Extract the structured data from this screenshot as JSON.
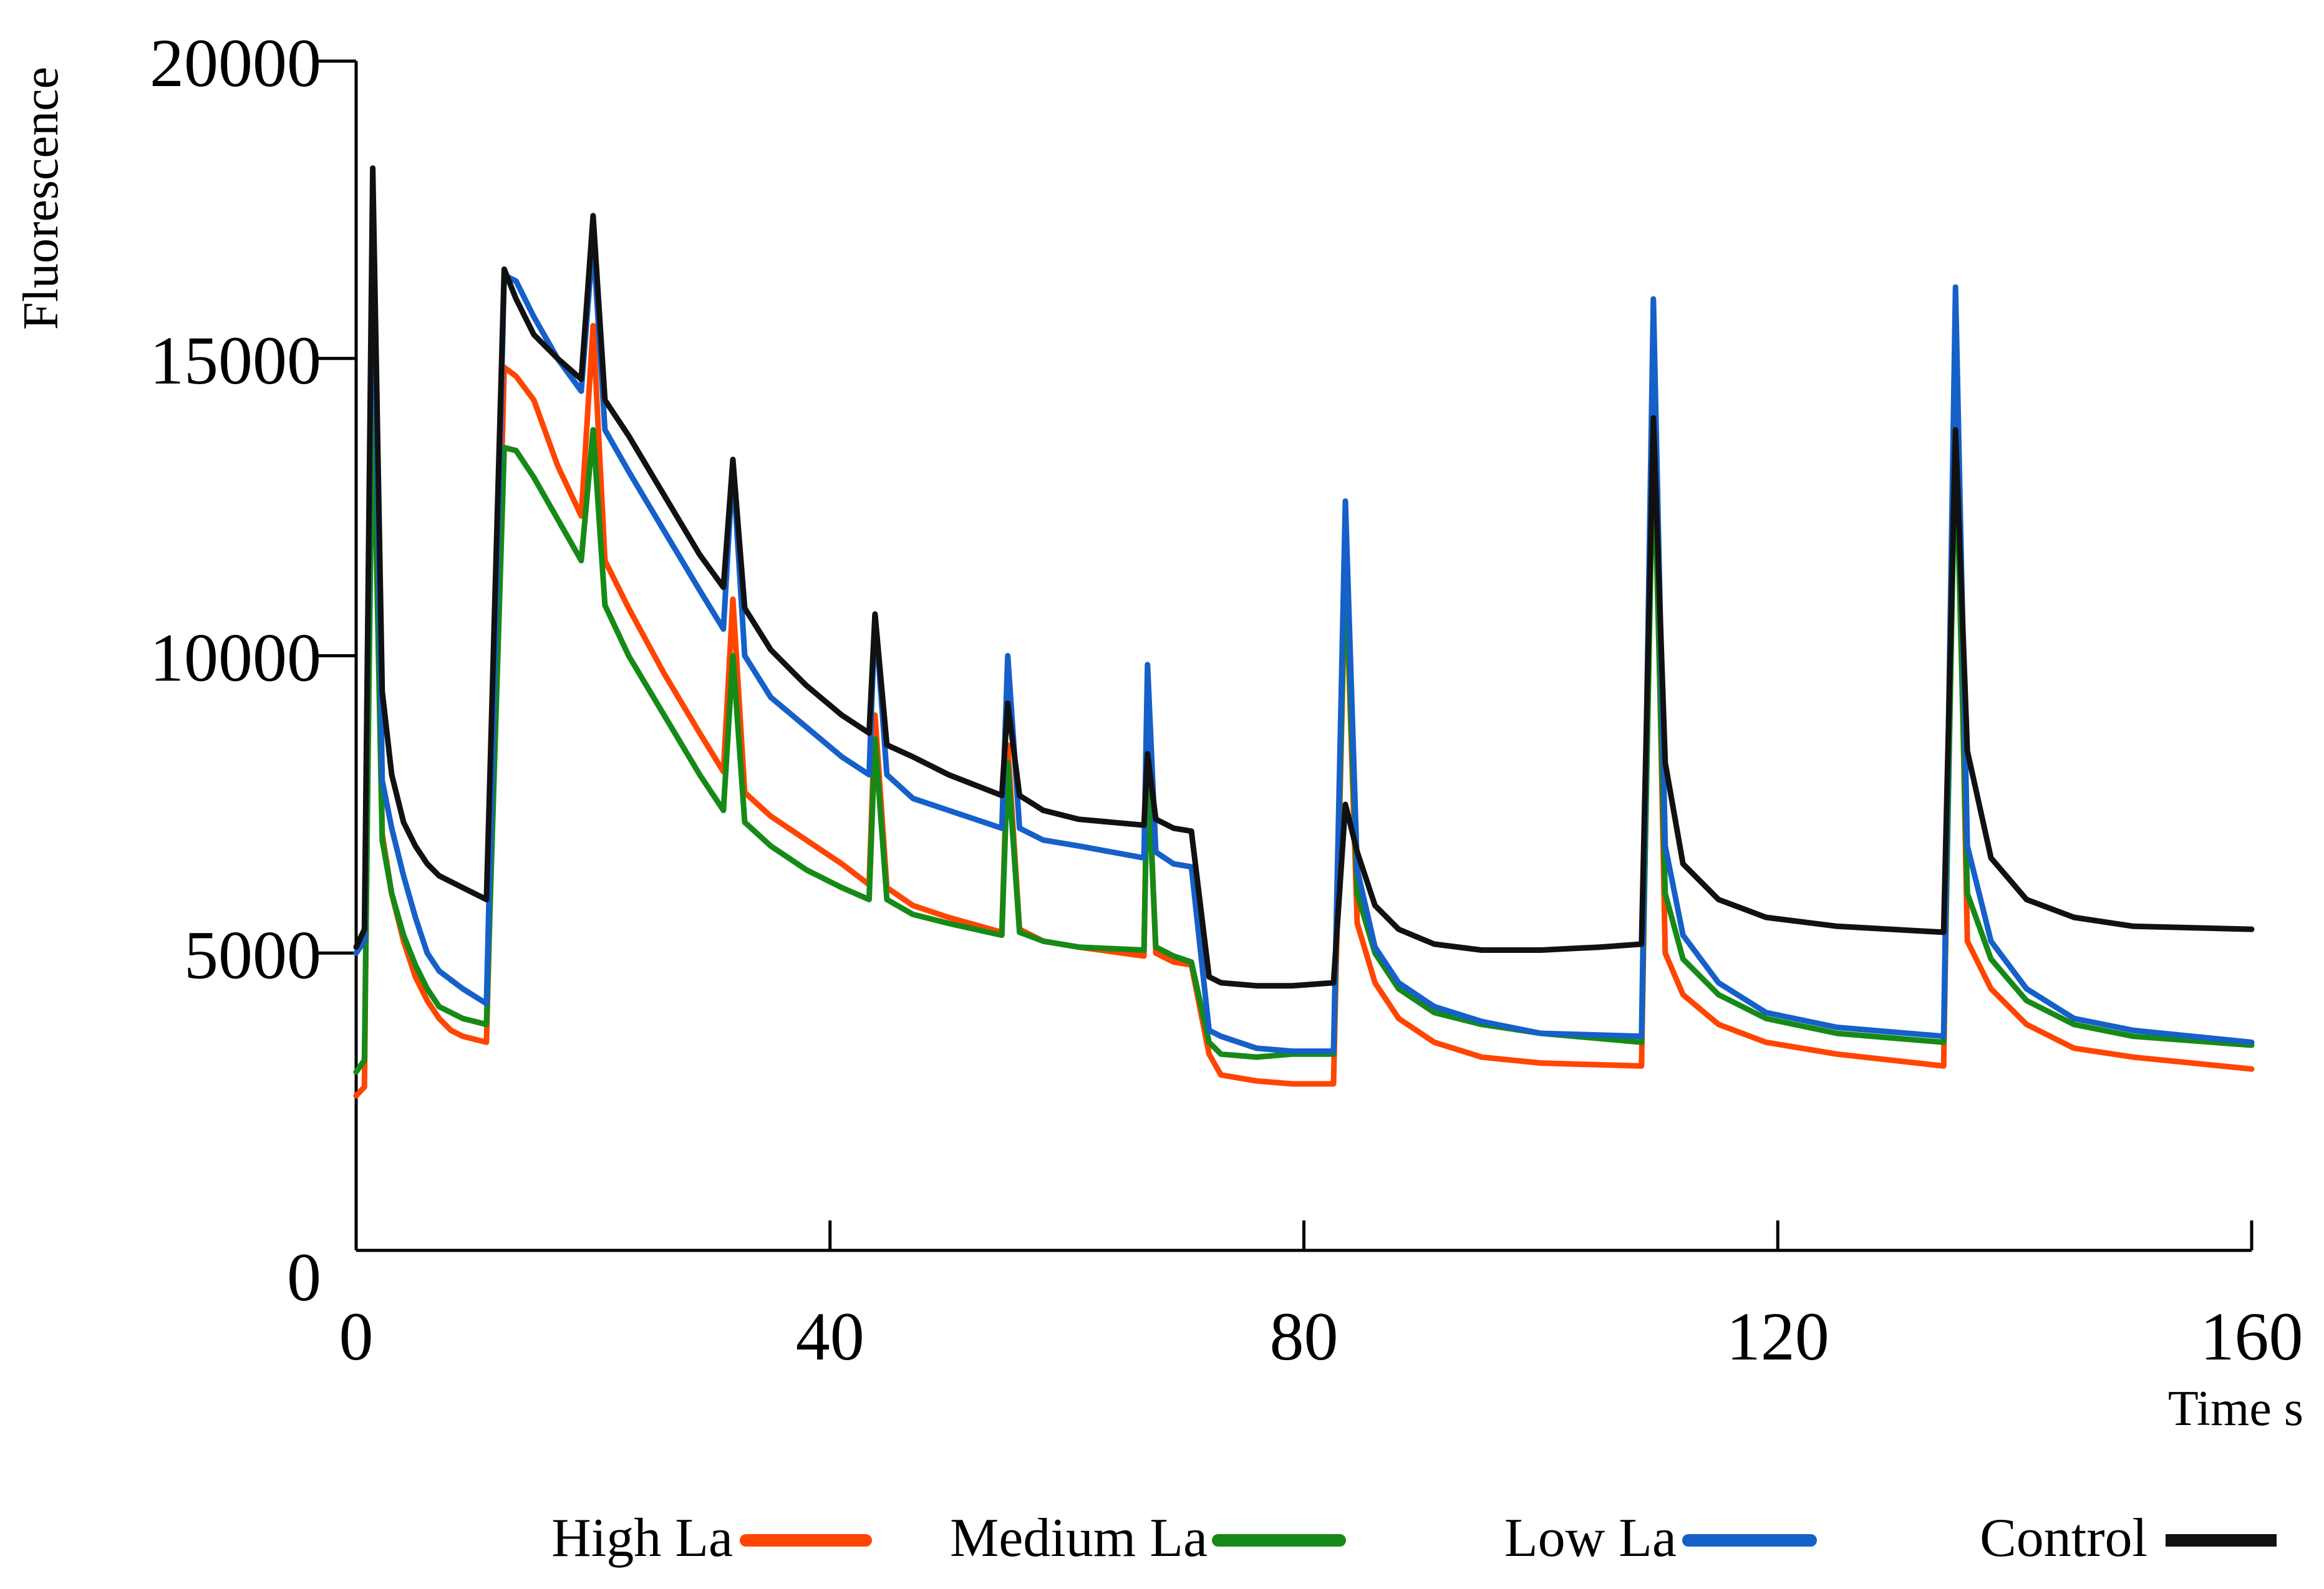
{
  "chart_data": {
    "type": "line",
    "title": "",
    "xlabel": "Time s",
    "ylabel": "Fluorescence",
    "xlim": [
      0,
      160
    ],
    "ylim": [
      0,
      20000
    ],
    "xticks": [
      0,
      40,
      80,
      120,
      160
    ],
    "yticks": [
      0,
      5000,
      10000,
      15000,
      20000
    ],
    "grid": false,
    "legend_position": "bottom",
    "series": [
      {
        "name": "High La",
        "color": "#ff4500",
        "points": [
          [
            0,
            2600
          ],
          [
            0.7,
            2750
          ],
          [
            1.4,
            16400
          ],
          [
            2.2,
            7000
          ],
          [
            3,
            6000
          ],
          [
            4,
            5200
          ],
          [
            5,
            4600
          ],
          [
            6,
            4200
          ],
          [
            7,
            3900
          ],
          [
            8,
            3700
          ],
          [
            9,
            3600
          ],
          [
            11,
            3500
          ],
          [
            12.5,
            14850
          ],
          [
            13.5,
            14700
          ],
          [
            15,
            14300
          ],
          [
            17,
            13200
          ],
          [
            19,
            12350
          ],
          [
            20,
            15550
          ],
          [
            21,
            11600
          ],
          [
            23,
            10800
          ],
          [
            26,
            9700
          ],
          [
            29,
            8700
          ],
          [
            31,
            8050
          ],
          [
            31.8,
            10950
          ],
          [
            32.8,
            7700
          ],
          [
            35,
            7300
          ],
          [
            38,
            6900
          ],
          [
            41,
            6500
          ],
          [
            43.3,
            6150
          ],
          [
            43.8,
            9000
          ],
          [
            44.8,
            6100
          ],
          [
            47,
            5800
          ],
          [
            50,
            5600
          ],
          [
            54.5,
            5350
          ],
          [
            55,
            8500
          ],
          [
            56,
            5400
          ],
          [
            58,
            5200
          ],
          [
            61,
            5100
          ],
          [
            66.5,
            4950
          ],
          [
            66.8,
            8500
          ],
          [
            67.5,
            5000
          ],
          [
            69,
            4850
          ],
          [
            70.5,
            4800
          ],
          [
            72,
            3300
          ],
          [
            73,
            2950
          ],
          [
            76,
            2850
          ],
          [
            79,
            2800
          ],
          [
            82.5,
            2800
          ],
          [
            83.5,
            11600
          ],
          [
            84.5,
            5500
          ],
          [
            86,
            4500
          ],
          [
            88,
            3900
          ],
          [
            91,
            3500
          ],
          [
            95,
            3250
          ],
          [
            100,
            3150
          ],
          [
            108.5,
            3100
          ],
          [
            109.5,
            15000
          ],
          [
            110.5,
            5000
          ],
          [
            112,
            4300
          ],
          [
            115,
            3800
          ],
          [
            119,
            3500
          ],
          [
            125,
            3300
          ],
          [
            134,
            3100
          ],
          [
            135,
            15300
          ],
          [
            136,
            5200
          ],
          [
            138,
            4400
          ],
          [
            141,
            3800
          ],
          [
            145,
            3400
          ],
          [
            150,
            3250
          ],
          [
            160,
            3050
          ]
        ]
      },
      {
        "name": "Medium La",
        "color": "#168a16",
        "points": [
          [
            0,
            3000
          ],
          [
            0.7,
            3200
          ],
          [
            1.4,
            14800
          ],
          [
            2.2,
            6900
          ],
          [
            3,
            6000
          ],
          [
            4,
            5300
          ],
          [
            5,
            4800
          ],
          [
            6,
            4400
          ],
          [
            7,
            4100
          ],
          [
            9,
            3900
          ],
          [
            11,
            3800
          ],
          [
            12.5,
            13500
          ],
          [
            13.5,
            13450
          ],
          [
            15,
            13000
          ],
          [
            17,
            12300
          ],
          [
            19,
            11600
          ],
          [
            20,
            13800
          ],
          [
            21,
            10850
          ],
          [
            23,
            10000
          ],
          [
            26,
            9000
          ],
          [
            29,
            8000
          ],
          [
            31,
            7400
          ],
          [
            31.8,
            10000
          ],
          [
            32.8,
            7200
          ],
          [
            35,
            6800
          ],
          [
            38,
            6400
          ],
          [
            41,
            6100
          ],
          [
            43.3,
            5900
          ],
          [
            43.8,
            8600
          ],
          [
            44.8,
            5900
          ],
          [
            47,
            5650
          ],
          [
            50,
            5500
          ],
          [
            54.5,
            5300
          ],
          [
            55,
            8200
          ],
          [
            56,
            5350
          ],
          [
            58,
            5200
          ],
          [
            61,
            5100
          ],
          [
            66.5,
            5050
          ],
          [
            66.8,
            8200
          ],
          [
            67.5,
            5100
          ],
          [
            69,
            4950
          ],
          [
            70.5,
            4850
          ],
          [
            72,
            3500
          ],
          [
            73,
            3300
          ],
          [
            76,
            3250
          ],
          [
            79,
            3300
          ],
          [
            82.5,
            3300
          ],
          [
            83.5,
            11700
          ],
          [
            84.5,
            6000
          ],
          [
            86,
            5000
          ],
          [
            88,
            4400
          ],
          [
            91,
            4000
          ],
          [
            95,
            3800
          ],
          [
            100,
            3650
          ],
          [
            108.5,
            3500
          ],
          [
            109.5,
            13800
          ],
          [
            110.5,
            6000
          ],
          [
            112,
            4900
          ],
          [
            115,
            4300
          ],
          [
            119,
            3900
          ],
          [
            125,
            3650
          ],
          [
            134,
            3500
          ],
          [
            135,
            13900
          ],
          [
            136,
            6000
          ],
          [
            138,
            4900
          ],
          [
            141,
            4200
          ],
          [
            145,
            3800
          ],
          [
            150,
            3600
          ],
          [
            160,
            3450
          ]
        ]
      },
      {
        "name": "Low La",
        "color": "#1560c9",
        "points": [
          [
            0,
            5000
          ],
          [
            0.7,
            5200
          ],
          [
            1.4,
            17800
          ],
          [
            2.2,
            7900
          ],
          [
            3,
            7100
          ],
          [
            4,
            6300
          ],
          [
            5,
            5600
          ],
          [
            6,
            5000
          ],
          [
            7,
            4700
          ],
          [
            9,
            4400
          ],
          [
            11,
            4150
          ],
          [
            12.5,
            16400
          ],
          [
            13.5,
            16300
          ],
          [
            15,
            15700
          ],
          [
            17,
            15000
          ],
          [
            19,
            14450
          ],
          [
            20,
            17000
          ],
          [
            21,
            13800
          ],
          [
            23,
            13100
          ],
          [
            26,
            12100
          ],
          [
            29,
            11100
          ],
          [
            31,
            10450
          ],
          [
            31.8,
            13200
          ],
          [
            32.8,
            10000
          ],
          [
            35,
            9300
          ],
          [
            38,
            8800
          ],
          [
            41,
            8300
          ],
          [
            43.3,
            8000
          ],
          [
            43.8,
            10700
          ],
          [
            44.8,
            8000
          ],
          [
            47,
            7600
          ],
          [
            50,
            7400
          ],
          [
            54.5,
            7100
          ],
          [
            55,
            10000
          ],
          [
            56,
            7100
          ],
          [
            58,
            6900
          ],
          [
            61,
            6800
          ],
          [
            66.5,
            6600
          ],
          [
            66.8,
            9850
          ],
          [
            67.5,
            6700
          ],
          [
            69,
            6500
          ],
          [
            70.5,
            6450
          ],
          [
            72,
            3700
          ],
          [
            73,
            3600
          ],
          [
            76,
            3400
          ],
          [
            79,
            3350
          ],
          [
            82.5,
            3350
          ],
          [
            83.5,
            12600
          ],
          [
            84.5,
            6400
          ],
          [
            86,
            5100
          ],
          [
            88,
            4500
          ],
          [
            91,
            4100
          ],
          [
            95,
            3850
          ],
          [
            100,
            3650
          ],
          [
            108.5,
            3600
          ],
          [
            109.5,
            16000
          ],
          [
            110.5,
            6800
          ],
          [
            112,
            5300
          ],
          [
            115,
            4500
          ],
          [
            119,
            4000
          ],
          [
            125,
            3750
          ],
          [
            134,
            3600
          ],
          [
            135,
            16200
          ],
          [
            136,
            6800
          ],
          [
            138,
            5200
          ],
          [
            141,
            4400
          ],
          [
            145,
            3900
          ],
          [
            150,
            3700
          ],
          [
            160,
            3500
          ]
        ]
      },
      {
        "name": "Control",
        "color": "#111111",
        "points": [
          [
            0,
            5100
          ],
          [
            0.7,
            5400
          ],
          [
            1.4,
            18200
          ],
          [
            2.2,
            9400
          ],
          [
            3,
            8000
          ],
          [
            4,
            7200
          ],
          [
            5,
            6800
          ],
          [
            6,
            6500
          ],
          [
            7,
            6300
          ],
          [
            9,
            6100
          ],
          [
            11,
            5900
          ],
          [
            12.5,
            16500
          ],
          [
            13.5,
            16000
          ],
          [
            15,
            15400
          ],
          [
            17,
            15000
          ],
          [
            19,
            14650
          ],
          [
            20,
            17400
          ],
          [
            21,
            14300
          ],
          [
            23,
            13700
          ],
          [
            26,
            12700
          ],
          [
            29,
            11700
          ],
          [
            31,
            11150
          ],
          [
            31.8,
            13300
          ],
          [
            32.8,
            10800
          ],
          [
            35,
            10100
          ],
          [
            38,
            9500
          ],
          [
            41,
            9000
          ],
          [
            43.3,
            8700
          ],
          [
            43.8,
            10700
          ],
          [
            44.8,
            8500
          ],
          [
            47,
            8300
          ],
          [
            50,
            8000
          ],
          [
            54.5,
            7650
          ],
          [
            55,
            9200
          ],
          [
            56,
            7650
          ],
          [
            58,
            7400
          ],
          [
            61,
            7250
          ],
          [
            66.5,
            7150
          ],
          [
            66.8,
            8350
          ],
          [
            67.5,
            7250
          ],
          [
            69,
            7100
          ],
          [
            70.5,
            7050
          ],
          [
            72,
            4600
          ],
          [
            73,
            4500
          ],
          [
            76,
            4450
          ],
          [
            79,
            4450
          ],
          [
            82.5,
            4500
          ],
          [
            83.5,
            7500
          ],
          [
            84.5,
            6700
          ],
          [
            86,
            5800
          ],
          [
            88,
            5400
          ],
          [
            91,
            5150
          ],
          [
            95,
            5050
          ],
          [
            100,
            5050
          ],
          [
            105,
            5100
          ],
          [
            108.5,
            5150
          ],
          [
            109.5,
            14000
          ],
          [
            110.5,
            8200
          ],
          [
            112,
            6500
          ],
          [
            115,
            5900
          ],
          [
            119,
            5600
          ],
          [
            125,
            5450
          ],
          [
            134,
            5350
          ],
          [
            135,
            13800
          ],
          [
            136,
            8400
          ],
          [
            138,
            6600
          ],
          [
            141,
            5900
          ],
          [
            145,
            5600
          ],
          [
            150,
            5450
          ],
          [
            160,
            5400
          ]
        ]
      }
    ]
  }
}
